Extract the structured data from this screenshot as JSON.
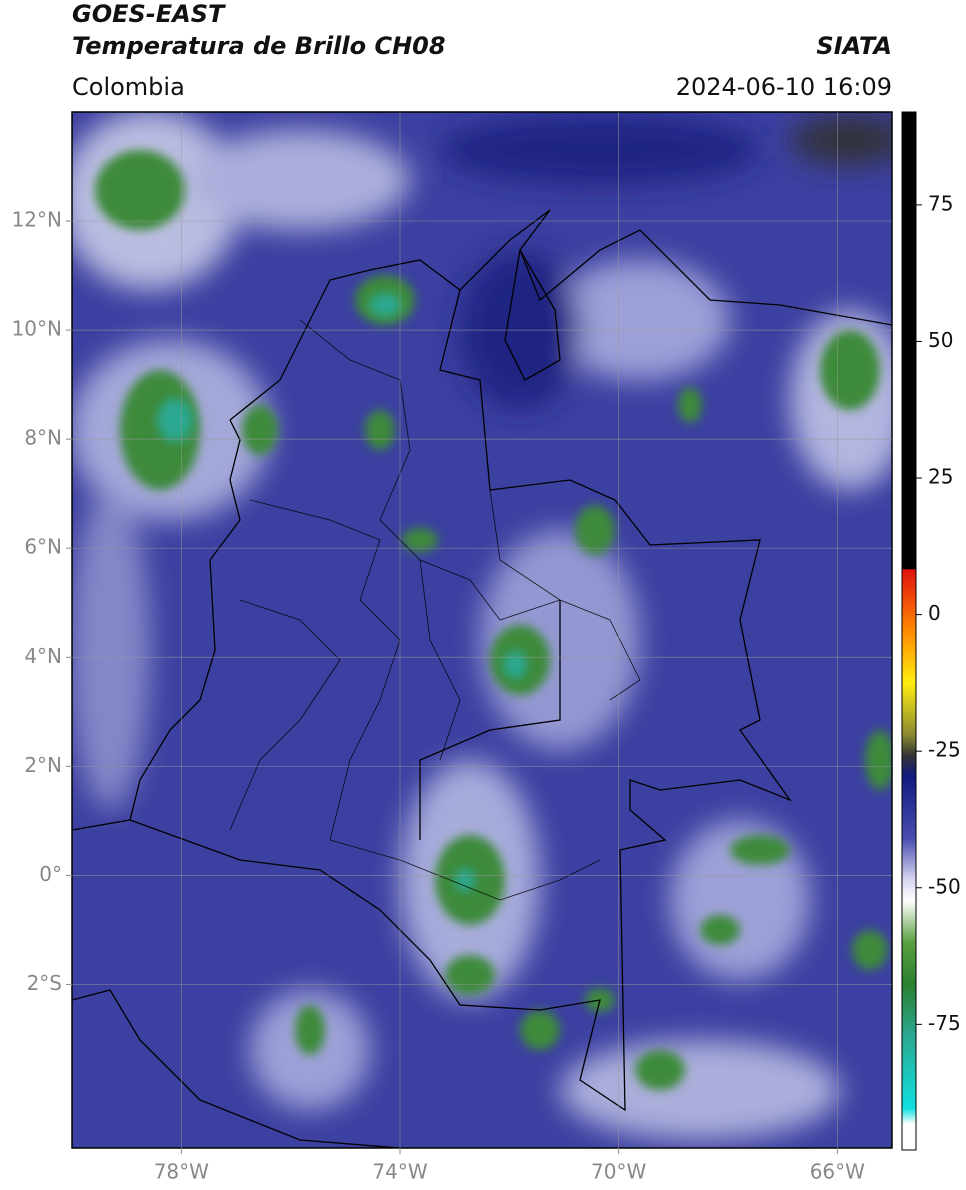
{
  "header": {
    "title_line1": "GOES-EAST",
    "title_line2": "Temperatura de Brillo CH08",
    "source": "SIATA",
    "region": "Colombia",
    "datetime": "2024-06-10 16:09"
  },
  "map": {
    "xlim": [
      -80,
      -65
    ],
    "ylim": [
      -5,
      14
    ],
    "grid": true,
    "xticks": [
      {
        "value": -78,
        "label": "78°W"
      },
      {
        "value": -74,
        "label": "74°W"
      },
      {
        "value": -70,
        "label": "70°W"
      },
      {
        "value": -66,
        "label": "66°W"
      }
    ],
    "yticks": [
      {
        "value": 12,
        "label": "12°N"
      },
      {
        "value": 10,
        "label": "10°N"
      },
      {
        "value": 8,
        "label": "8°N"
      },
      {
        "value": 6,
        "label": "6°N"
      },
      {
        "value": 4,
        "label": "4°N"
      },
      {
        "value": 2,
        "label": "2°N"
      },
      {
        "value": 0,
        "label": "0°"
      },
      {
        "value": -2,
        "label": "2°S"
      }
    ]
  },
  "colorbar": {
    "lim": [
      -98,
      92
    ],
    "ticks": [
      75,
      50,
      25,
      0,
      -25,
      -50,
      -75
    ]
  }
}
